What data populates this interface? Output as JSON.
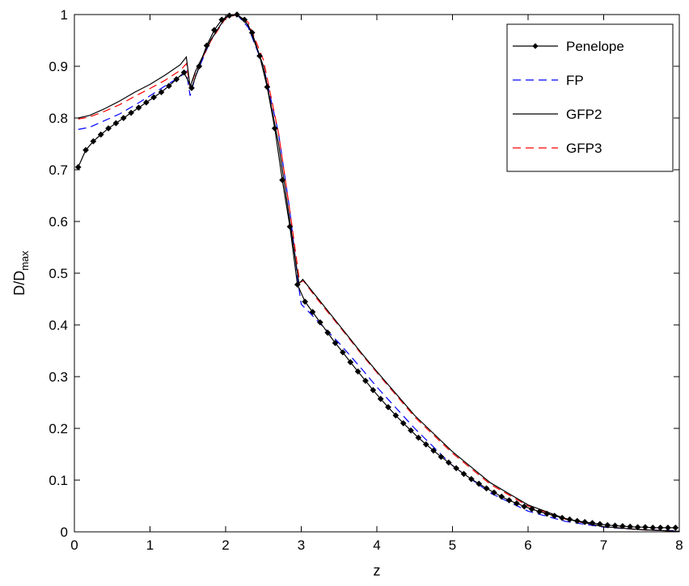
{
  "chart_data": {
    "type": "line",
    "xlabel": "z",
    "ylabel": "D/D",
    "ylabel_sub": "max",
    "xlim": [
      0,
      8
    ],
    "ylim": [
      0,
      1
    ],
    "xticks": [
      "0",
      "1",
      "2",
      "3",
      "4",
      "5",
      "6",
      "7",
      "8"
    ],
    "yticks": [
      "0",
      "0.1",
      "0.2",
      "0.3",
      "0.4",
      "0.5",
      "0.6",
      "0.7",
      "0.8",
      "0.9",
      "1"
    ],
    "grid": false,
    "legend_position": "top-right",
    "series": [
      {
        "name": "Penelope",
        "color": "#000000",
        "style": "solid-diamond-markers",
        "x": [
          0.05,
          0.15,
          0.25,
          0.35,
          0.45,
          0.55,
          0.65,
          0.75,
          0.85,
          0.95,
          1.05,
          1.15,
          1.25,
          1.35,
          1.45,
          1.55,
          1.65,
          1.75,
          1.85,
          1.95,
          2.05,
          2.15,
          2.25,
          2.35,
          2.45,
          2.55,
          2.65,
          2.75,
          2.85,
          2.95,
          3.05,
          3.15,
          3.25,
          3.35,
          3.45,
          3.55,
          3.65,
          3.75,
          3.85,
          3.95,
          4.05,
          4.15,
          4.25,
          4.35,
          4.45,
          4.55,
          4.65,
          4.75,
          4.85,
          4.95,
          5.05,
          5.15,
          5.25,
          5.35,
          5.45,
          5.55,
          5.65,
          5.75,
          5.85,
          5.95,
          6.05,
          6.15,
          6.25,
          6.35,
          6.45,
          6.55,
          6.65,
          6.75,
          6.85,
          6.95,
          7.05,
          7.15,
          7.25,
          7.35,
          7.45,
          7.55,
          7.65,
          7.75,
          7.85,
          7.95
        ],
        "y": [
          0.705,
          0.738,
          0.755,
          0.768,
          0.78,
          0.79,
          0.8,
          0.81,
          0.82,
          0.83,
          0.84,
          0.85,
          0.862,
          0.875,
          0.888,
          0.858,
          0.9,
          0.94,
          0.97,
          0.99,
          0.998,
          1.0,
          0.99,
          0.965,
          0.92,
          0.86,
          0.78,
          0.68,
          0.59,
          0.478,
          0.445,
          0.425,
          0.405,
          0.385,
          0.365,
          0.347,
          0.328,
          0.31,
          0.292,
          0.274,
          0.257,
          0.241,
          0.225,
          0.21,
          0.196,
          0.182,
          0.169,
          0.157,
          0.145,
          0.134,
          0.123,
          0.112,
          0.102,
          0.093,
          0.084,
          0.076,
          0.068,
          0.061,
          0.055,
          0.049,
          0.044,
          0.039,
          0.035,
          0.031,
          0.027,
          0.024,
          0.021,
          0.019,
          0.017,
          0.015,
          0.013,
          0.012,
          0.011,
          0.01,
          0.009,
          0.009,
          0.008,
          0.008,
          0.008,
          0.008
        ]
      },
      {
        "name": "FP",
        "color": "#0000ff",
        "style": "dashed",
        "x": [
          0.05,
          0.2,
          0.4,
          0.6,
          0.8,
          1.0,
          1.2,
          1.4,
          1.48,
          1.53,
          1.6,
          1.8,
          2.0,
          2.15,
          2.3,
          2.5,
          2.7,
          2.85,
          2.96,
          3.0,
          3.1,
          3.3,
          3.5,
          3.8,
          4.0,
          4.5,
          5.0,
          5.5,
          6.0,
          6.5,
          7.0,
          7.5,
          8.0
        ],
        "y": [
          0.778,
          0.782,
          0.795,
          0.808,
          0.825,
          0.843,
          0.862,
          0.88,
          0.89,
          0.843,
          0.88,
          0.95,
          0.995,
          1.0,
          0.975,
          0.9,
          0.77,
          0.62,
          0.48,
          0.44,
          0.425,
          0.395,
          0.365,
          0.315,
          0.28,
          0.2,
          0.128,
          0.075,
          0.04,
          0.02,
          0.009,
          0.004,
          0.002
        ]
      },
      {
        "name": "GFP2",
        "color": "#000000",
        "style": "solid",
        "x": [
          0.05,
          0.2,
          0.4,
          0.6,
          0.8,
          1.0,
          1.2,
          1.4,
          1.48,
          1.53,
          1.6,
          1.8,
          2.0,
          2.15,
          2.3,
          2.5,
          2.7,
          2.85,
          2.97,
          3.02,
          3.2,
          3.5,
          3.8,
          4.0,
          4.5,
          5.0,
          5.5,
          6.0,
          6.5,
          7.0,
          7.5,
          8.0
        ],
        "y": [
          0.8,
          0.805,
          0.818,
          0.833,
          0.85,
          0.865,
          0.883,
          0.903,
          0.918,
          0.86,
          0.89,
          0.95,
          0.995,
          1.0,
          0.98,
          0.9,
          0.75,
          0.6,
          0.48,
          0.488,
          0.455,
          0.4,
          0.345,
          0.31,
          0.225,
          0.155,
          0.095,
          0.052,
          0.025,
          0.01,
          0.004,
          0.001
        ]
      },
      {
        "name": "GFP3",
        "color": "#ff0000",
        "style": "dashed",
        "x": [
          0.05,
          0.2,
          0.4,
          0.6,
          0.8,
          1.0,
          1.2,
          1.4,
          1.48,
          1.53,
          1.6,
          1.8,
          2.0,
          2.15,
          2.3,
          2.5,
          2.7,
          2.87,
          2.98,
          3.03,
          3.2,
          3.5,
          3.8,
          4.0,
          4.5,
          5.0,
          5.5,
          6.0,
          6.5,
          7.0,
          7.5,
          8.0
        ],
        "y": [
          0.798,
          0.802,
          0.813,
          0.826,
          0.842,
          0.857,
          0.873,
          0.892,
          0.905,
          0.858,
          0.888,
          0.948,
          0.993,
          1.0,
          0.985,
          0.912,
          0.77,
          0.6,
          0.482,
          0.485,
          0.452,
          0.398,
          0.343,
          0.308,
          0.222,
          0.152,
          0.092,
          0.05,
          0.024,
          0.01,
          0.004,
          0.001
        ]
      }
    ]
  }
}
